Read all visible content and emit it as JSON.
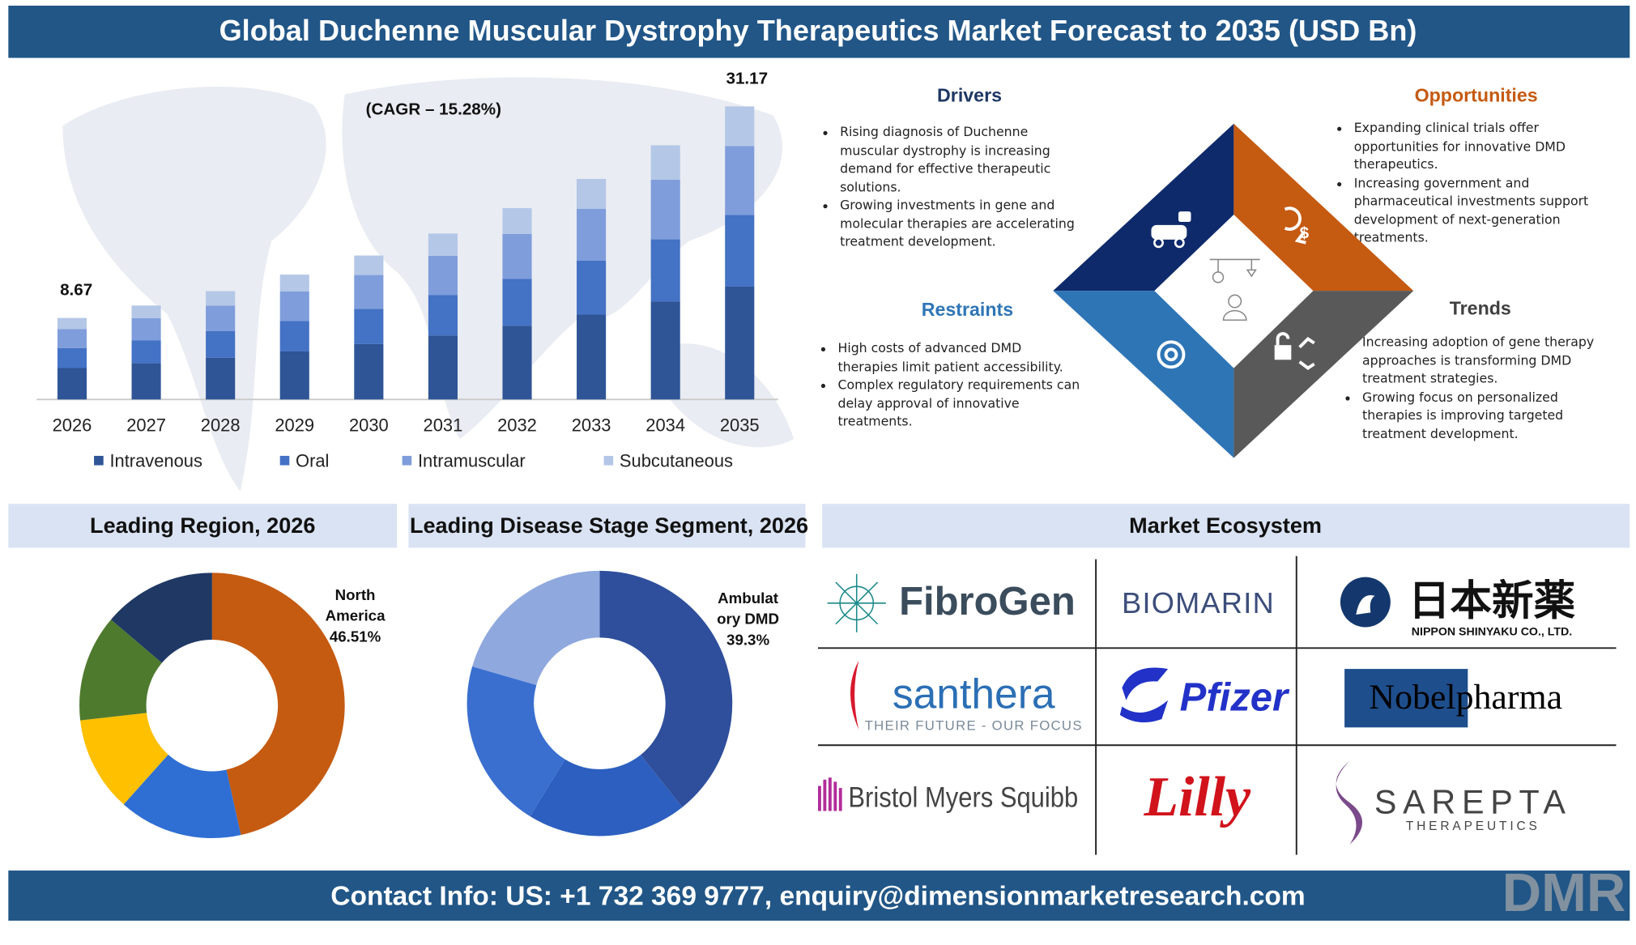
{
  "header": {
    "title": "Global Duchenne Muscular Dystrophy Therapeutics Market Forecast to 2035 (USD Bn)"
  },
  "chart_data": [
    {
      "type": "stacked_bar",
      "subtitle": "(CAGR – 15.28%)",
      "categories": [
        "2026",
        "2027",
        "2028",
        "2029",
        "2030",
        "2031",
        "2032",
        "2033",
        "2034",
        "2035"
      ],
      "series": [
        {
          "name": "Intravenous",
          "color": "#2f5597",
          "values": [
            3.34,
            3.85,
            4.44,
            5.11,
            5.89,
            6.8,
            7.83,
            9.03,
            10.41,
            12.0
          ]
        },
        {
          "name": "Oral",
          "color": "#4472c4",
          "values": [
            2.12,
            2.45,
            2.82,
            3.25,
            3.75,
            4.32,
            4.99,
            5.75,
            6.62,
            7.64
          ]
        },
        {
          "name": "Intramuscular",
          "color": "#7f9ddb",
          "values": [
            2.04,
            2.35,
            2.71,
            3.12,
            3.6,
            4.15,
            4.78,
            5.51,
            6.35,
            7.32
          ]
        },
        {
          "name": "Subcutaneous",
          "color": "#b4c7e7",
          "values": [
            1.17,
            1.34,
            1.55,
            1.8,
            2.07,
            2.38,
            2.75,
            3.17,
            3.66,
            4.21
          ]
        }
      ],
      "annotations": [
        "8.67",
        "31.17"
      ],
      "ylim": [
        0,
        34
      ],
      "legend": "bottom"
    },
    {
      "type": "donut",
      "title": "Leading Region, 2026",
      "categories": [
        "North America",
        null,
        null,
        null,
        null
      ],
      "values": [
        46.51,
        15.1,
        11.6,
        13.0,
        13.79
      ],
      "value_labels": [
        "46.51%",
        null,
        null,
        null,
        null
      ],
      "colors": [
        "#c55a11",
        "#2f6fd4",
        "#ffc000",
        "#4e7a2e",
        "#1f3864"
      ]
    },
    {
      "type": "donut",
      "title": "Leading Disease Stage  Segment, 2026",
      "categories": [
        "Ambulatory DMD",
        null,
        null,
        null
      ],
      "values": [
        39.3,
        19.5,
        20.7,
        20.5
      ],
      "value_labels": [
        "39.3%",
        null,
        null,
        null
      ],
      "colors": [
        "#2f4f9c",
        "#2c5fbf",
        "#3a6fd0",
        "#8fa8de"
      ]
    }
  ],
  "drivers": {
    "title": "Drivers",
    "items": [
      "Rising diagnosis of Duchenne muscular dystrophy is increasing demand for effective therapeutic solutions.",
      "Growing investments in gene and molecular therapies are accelerating treatment development."
    ]
  },
  "opportunities": {
    "title": "Opportunities",
    "items": [
      "Expanding clinical trials offer opportunities for innovative DMD therapeutics.",
      "Increasing government and pharmaceutical investments support development of next-generation treatments."
    ]
  },
  "restraints": {
    "title": "Restraints",
    "items": [
      "High costs of advanced DMD therapies limit patient accessibility.",
      "Complex regulatory requirements can delay approval of innovative treatments."
    ]
  },
  "trends": {
    "title": "Trends",
    "items": [
      "Increasing adoption of gene therapy approaches is transforming DMD treatment strategies.",
      "Growing focus on personalized therapies is improving targeted treatment development."
    ]
  },
  "ecosystem": {
    "title": "Market Ecosystem",
    "companies": [
      {
        "name": "FibroGen"
      },
      {
        "name": "BIOMARIN"
      },
      {
        "name": "日本新薬",
        "subtitle": "NIPPON SHINYAKU CO., LTD."
      },
      {
        "name": "santhera",
        "subtitle": "THEIR FUTURE - OUR FOCUS"
      },
      {
        "name": "Pfizer"
      },
      {
        "name": "Nobelpharma"
      },
      {
        "name": "Bristol Myers Squibb"
      },
      {
        "name": "Lilly"
      },
      {
        "name": "SAREPTA",
        "subtitle": "THERAPEUTICS"
      }
    ]
  },
  "footer": {
    "contact": "Contact Info: US: +1 732 369 9777, enquiry@dimensionmarketresearch.com",
    "logo": "DMR"
  }
}
